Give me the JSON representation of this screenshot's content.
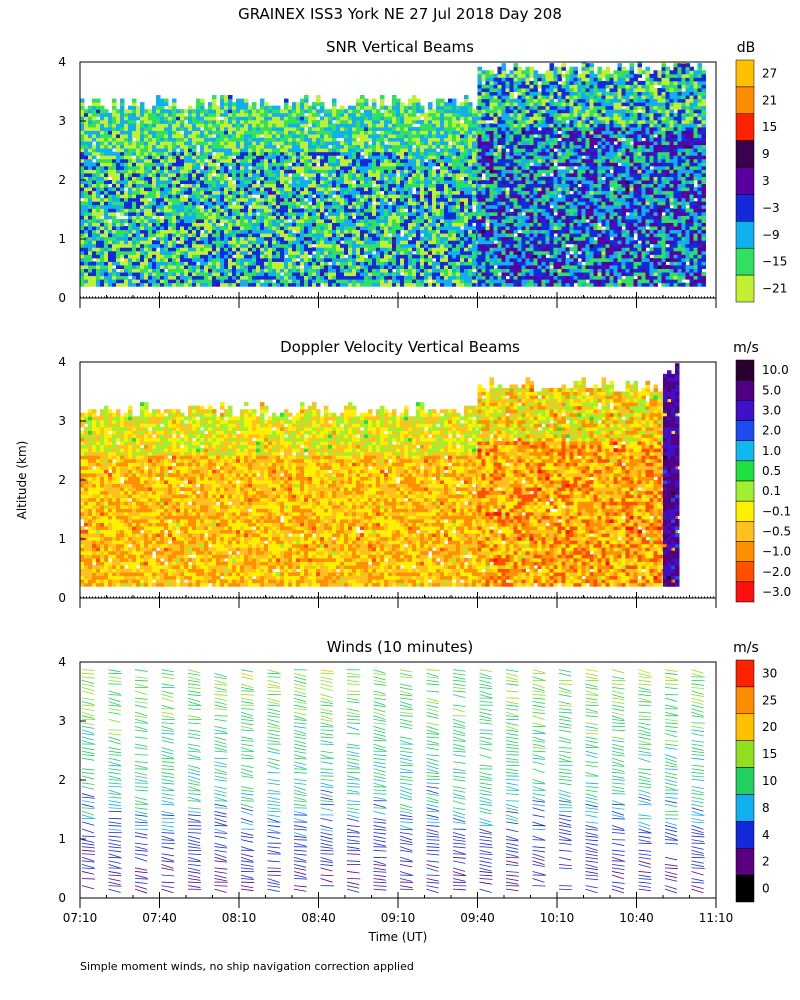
{
  "figure": {
    "title": "GRAINEX ISS3 York NE  27 Jul 2018 Day 208",
    "ylabel": "Altitude (km)",
    "xlabel": "Time (UT)",
    "footnote": "Simple moment winds, no ship navigation correction applied"
  },
  "chart_data": [
    {
      "type": "heatmap",
      "title": "SNR Vertical Beams",
      "x_range": [
        "07:10",
        "11:10"
      ],
      "ylim": [
        0,
        4
      ],
      "yticks": [
        "0",
        "1",
        "2",
        "3",
        "4"
      ],
      "colorbar": {
        "unit": "dB",
        "labels": [
          "27",
          "21",
          "15",
          "9",
          "3",
          "−3",
          "−9",
          "−15",
          "−21"
        ],
        "colors": [
          "#ffc000",
          "#ff8c00",
          "#ff2200",
          "#3c0050",
          "#5a00a0",
          "#1428dc",
          "#10b0f0",
          "#30e060",
          "#c0f030"
        ]
      },
      "bands": [
        {
          "t0": "07:10",
          "t1": "09:40",
          "alt_range": [
            0.2,
            3.4
          ],
          "dominant_dB": [
            -15,
            -3
          ]
        },
        {
          "t0": "09:40",
          "t1": "11:05",
          "alt_range": [
            0.2,
            4.0
          ],
          "dominant_dB": [
            -9,
            3
          ]
        }
      ]
    },
    {
      "type": "heatmap",
      "title": "Doppler Velocity Vertical Beams",
      "x_range": [
        "07:10",
        "11:10"
      ],
      "ylim": [
        0,
        4
      ],
      "yticks": [
        "0",
        "1",
        "2",
        "3",
        "4"
      ],
      "colorbar": {
        "unit": "m/s",
        "labels": [
          "10.0",
          "5.0",
          "3.0",
          "2.0",
          "1.0",
          "0.5",
          "0.1",
          "−0.1",
          "−0.5",
          "−1.0",
          "−2.0",
          "−3.0"
        ],
        "colors": [
          "#2a0030",
          "#500080",
          "#4010c8",
          "#1a4cf0",
          "#10b8f0",
          "#20e040",
          "#a0f030",
          "#fff000",
          "#ffc020",
          "#ff9000",
          "#ff5000",
          "#ff1010"
        ]
      },
      "bands": [
        {
          "t0": "07:10",
          "t1": "09:40",
          "alt_range": [
            0.2,
            3.3
          ],
          "dominant_ms": [
            -0.5,
            -0.1
          ]
        },
        {
          "t0": "09:40",
          "t1": "10:55",
          "alt_range": [
            0.2,
            3.7
          ],
          "dominant_ms": [
            -1.0,
            -0.1
          ]
        },
        {
          "t0": "10:50",
          "t1": "10:56",
          "alt_range": [
            0.2,
            4.0
          ],
          "dominant_ms": [
            3.0,
            10.0
          ]
        }
      ]
    },
    {
      "type": "wind_barbs",
      "title": "Winds (10 minutes)",
      "x_range": [
        "07:10",
        "11:10"
      ],
      "xticks": [
        "07:10",
        "07:40",
        "08:10",
        "08:40",
        "09:10",
        "09:40",
        "10:10",
        "10:40",
        "11:10"
      ],
      "ylim": [
        0,
        4
      ],
      "yticks": [
        "0",
        "1",
        "2",
        "3",
        "4"
      ],
      "colorbar": {
        "unit": "m/s",
        "labels": [
          "30",
          "25",
          "20",
          "15",
          "10",
          "8",
          "4",
          "2",
          "0"
        ],
        "colors": [
          "#ff2200",
          "#ff8c00",
          "#ffc000",
          "#90e020",
          "#20d060",
          "#10b0f0",
          "#1428dc",
          "#5a0080",
          "#000000"
        ]
      },
      "profile_times": [
        "07:10",
        "07:20",
        "07:30",
        "07:40",
        "07:50",
        "08:00",
        "08:10",
        "08:20",
        "08:30",
        "08:40",
        "08:50",
        "09:00",
        "09:10",
        "09:20",
        "09:30",
        "09:40",
        "09:50",
        "10:00",
        "10:10",
        "10:20",
        "10:30",
        "10:40",
        "10:50",
        "11:00"
      ],
      "speed_profile_ms": [
        {
          "alt_km": 0.5,
          "speed": 4
        },
        {
          "alt_km": 1.0,
          "speed": 6
        },
        {
          "alt_km": 1.5,
          "speed": 9
        },
        {
          "alt_km": 2.0,
          "speed": 11
        },
        {
          "alt_km": 2.5,
          "speed": 12
        },
        {
          "alt_km": 3.0,
          "speed": 13
        },
        {
          "alt_km": 3.5,
          "speed": 15
        },
        {
          "alt_km": 4.0,
          "speed": 17
        }
      ],
      "direction": "from west-southwest"
    }
  ]
}
